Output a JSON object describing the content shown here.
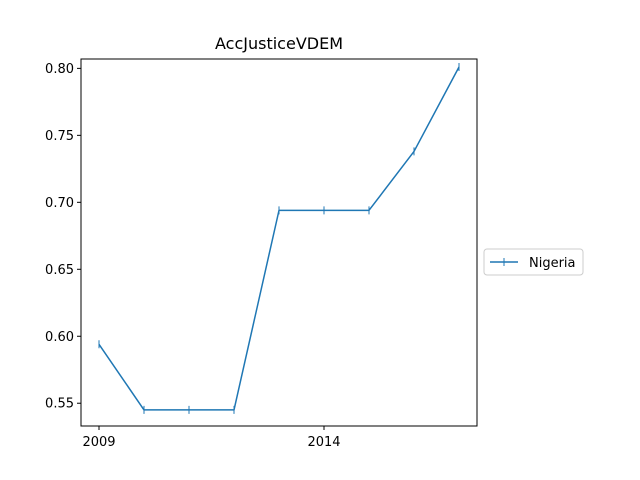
{
  "chart_data": {
    "type": "line",
    "title": "AccJusticeVDEM",
    "xlabel": "",
    "ylabel": "",
    "x": [
      2009,
      2010,
      2011,
      2012,
      2013,
      2014,
      2015,
      2016,
      2017
    ],
    "x_ticks": [
      "2009",
      "2014"
    ],
    "y_ticks": [
      "0.55",
      "0.60",
      "0.65",
      "0.70",
      "0.75",
      "0.80"
    ],
    "xlim": [
      2008.6,
      2017.4
    ],
    "ylim": [
      0.533,
      0.807
    ],
    "grid": false,
    "legend_position": "right",
    "series": [
      {
        "name": "Nigeria",
        "color": "#1f77b4",
        "marker": "vertical-tick",
        "values": [
          0.594,
          0.545,
          0.545,
          0.545,
          0.694,
          0.694,
          0.694,
          0.738,
          0.801
        ]
      }
    ]
  }
}
